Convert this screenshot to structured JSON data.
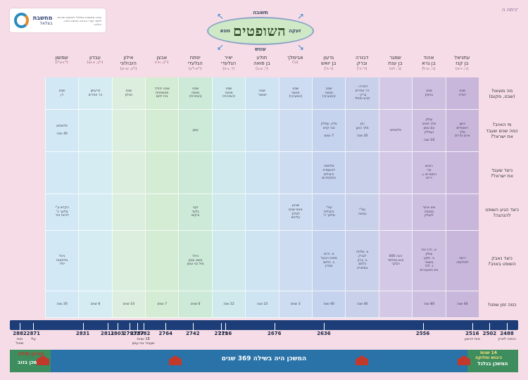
{
  "grade": "כיתה ה'",
  "logo": {
    "name": "מחשבת",
    "sub": "בצלאל",
    "side": "מרכז מחשבת בצלאל להפקת תכניות לימוד ועזרי הוראה בנושאי תורה והלכה"
  },
  "title": {
    "main": "השופטים",
    "top": "תשובה",
    "bottom": "עונש",
    "left": "חטא",
    "right": "זעקה"
  },
  "judges": [
    {
      "name": "עתניאל\nבן קנז",
      "ref": "(ג', ז-יא)"
    },
    {
      "name": "אהוד\nבן גרא",
      "ref": "(ג', יב-ל)"
    },
    {
      "name": "שמגר\nבן ענת",
      "ref": "(ג', לא)"
    },
    {
      "name": "דבורה\nוברק",
      "ref": "(ד'-ה')"
    },
    {
      "name": "גדעון\nבן יואש",
      "ref": "(ו'-ח')"
    },
    {
      "name": "אבימלך",
      "ref": "(ט')"
    },
    {
      "name": "תולע\nבן פואה",
      "ref": "(י', א-ב)"
    },
    {
      "name": "יאיר\nהגלעדי",
      "ref": "(י', ג-ה)"
    },
    {
      "name": "יפתח\nהגלעדי",
      "ref": "(י\"א-י\"ב)"
    },
    {
      "name": "אבצן",
      "ref": "(י\"ב, ח-י)"
    },
    {
      "name": "אילון\nהזבולוני",
      "ref": "(י\"ב, יא-יב)"
    },
    {
      "name": "עבדון",
      "ref": "(י\"ב, יג-טו)"
    },
    {
      "name": "שמשון",
      "ref": "(י\"ג-ט\"ז)"
    }
  ],
  "row_labels": [
    "מה מוצאו?\n(שבט, מקום)",
    "מי האויב?\nכמה שנים שעבד\nאת ישראל?",
    "כיצד שעבד\nאת ישראל?",
    "כיצד הגיע השופט\nלהנהגה?",
    "כיצד נאבק\nהשופט באויב?",
    "כמה זמן שפט?"
  ],
  "colors": [
    "#c9b7db",
    "#cdbfe0",
    "#d3c9e6",
    "#c9d1ea",
    "#c6d3ee",
    "#cddcf0",
    "#cfe4f2",
    "#cfe9ec",
    "#cde9d8",
    "#d5ecd4",
    "#dceedd",
    "#d6ecf3",
    "#d3e8f5"
  ],
  "cells": [
    [
      "שבט\nיהודה",
      "כושן\nרשעתיים\nמלך\nארם נהרים",
      "",
      "",
      "ירשה\nלמלחמה",
      "40 שנה"
    ],
    [
      "שבט\nבנימין",
      "עגלון\nמלך מואב\nעם עמון\nועמלק\n\n18 שנה",
      "כיבוש\nעיר\nהתמרים =\nיריחו",
      "יצא אהוד\nבמנחה\nלעגלון",
      "א. הרג את\nעגלון\nב. תקע\nבשופר\nג. לכד\nאת המעברות",
      "80 שנה"
    ],
    [
      "",
      "פלשתים",
      "",
      "",
      "הכה 600\nאיש במלמד\nהבקר",
      ""
    ],
    [
      "דבורה -\nהר אפרים\nברק -\nקדש נפתלי",
      "יבין\nמלך כנען\n\n20 שנה",
      "",
      "עפ\"י\nנבואה",
      "א. שלחה\nלברק\nב. ברק\nנלחם\nבסיסרא",
      "40 שנה"
    ],
    [
      "שבט\nמנשה\n(המערבי)",
      "מדין, עמלק\nובני קדם\n\n7 שנים",
      "מלחמה\nלהשמדת\nהיבולים\nהחקלאיים",
      "עפ\"י\nהתגלות\nמלאך ה'",
      "א. הרס\nמזבח הבעל\nב. נלחם\nבמדין",
      "40 שנה"
    ],
    [
      "שבט\nמנשה\n(המערבי)",
      "",
      "",
      "שכנע\nאנשי שכם\nלמלוך\nעליהם",
      "",
      "3 שנים"
    ],
    [
      "שבט\nיששכר",
      "",
      "",
      "",
      "",
      "23 שנה"
    ],
    [
      "שבט\nמנשה\n(המזרחי)",
      "",
      "",
      "",
      "",
      "22 שנה"
    ],
    [
      "שבט\nמנשה\n(המזרחי)",
      "עמון",
      "",
      "זקני\nגלעד\nביקשו",
      "ניהל\nמשא ומתן\nמול בני עמון",
      "6 שנים"
    ],
    [
      "שבט יהודה\nממשפחת\nבית לחם",
      "",
      "",
      "",
      "",
      "7 שנים"
    ],
    [
      "שבט\nזבולון",
      "",
      "",
      "",
      "",
      "10 שנים"
    ],
    [
      "פרעתון\nהר אפרים",
      "",
      "",
      "",
      "",
      "8 שנים"
    ],
    [
      "שבט\nדן",
      "פלשתים\n\n40 שנה",
      "",
      "הקדש ע\"י\nמלאך ה'\nלהיות נזיר",
      "ניהל\nמלחמות\nיחיד",
      "20 שנה"
    ]
  ],
  "timeline": {
    "years": [
      "2488",
      "2502",
      "2516",
      "2556",
      "2636",
      "2676",
      "2716",
      "2719",
      "2742",
      "2764",
      "2782",
      "2787",
      "2793",
      "2803",
      "2811",
      "2831",
      "2871",
      "2882"
    ],
    "notes": [
      {
        "text": "כניסה לארץ",
        "year": "2488"
      },
      {
        "text": "מות יהושע",
        "year": "2516"
      },
      {
        "text": "18 שנות\nשעבוד בני עמון",
        "year": "2782"
      },
      {
        "text": "מות\nשאול",
        "year": "2882"
      },
      {
        "text": "עלי",
        "year": "2871"
      }
    ]
  },
  "band": {
    "center": "המשכן היה בשילה 369 שנים",
    "left": "המשכן בנוב",
    "left_top": "חורבן שילה",
    "right": "המשכן בגלגל",
    "right_top": "14 שנות\nכיבוש וחלוקה"
  }
}
